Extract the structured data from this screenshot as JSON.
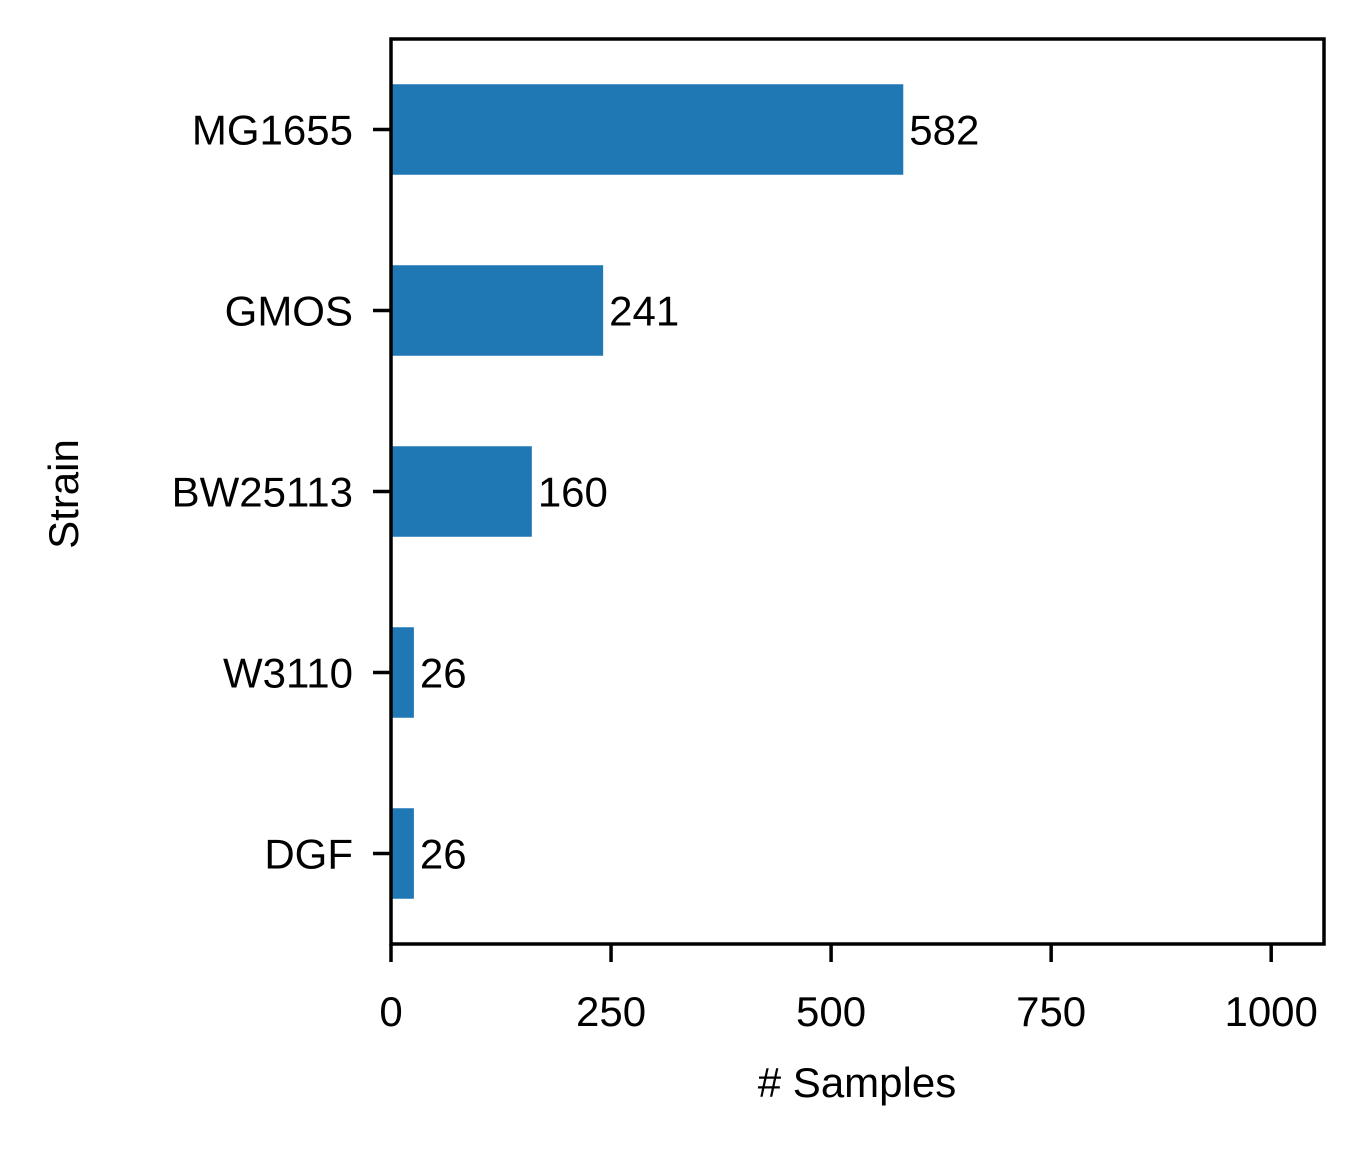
{
  "chart_data": {
    "type": "bar",
    "orientation": "horizontal",
    "categories": [
      "MG1655",
      "GMOS",
      "BW25113",
      "W3110",
      "DGF"
    ],
    "values": [
      582,
      241,
      160,
      26,
      26
    ],
    "data_labels": [
      "582",
      "241",
      "160",
      "26",
      "26"
    ],
    "xlabel": "# Samples",
    "ylabel": "Strain",
    "xlim": [
      0,
      1060
    ],
    "xticks": [
      0,
      250,
      500,
      750,
      1000
    ],
    "xtick_labels": [
      "0",
      "250",
      "500",
      "750",
      "1000"
    ],
    "grid": false,
    "legend": "none",
    "bar_color": "#1f77b4"
  }
}
